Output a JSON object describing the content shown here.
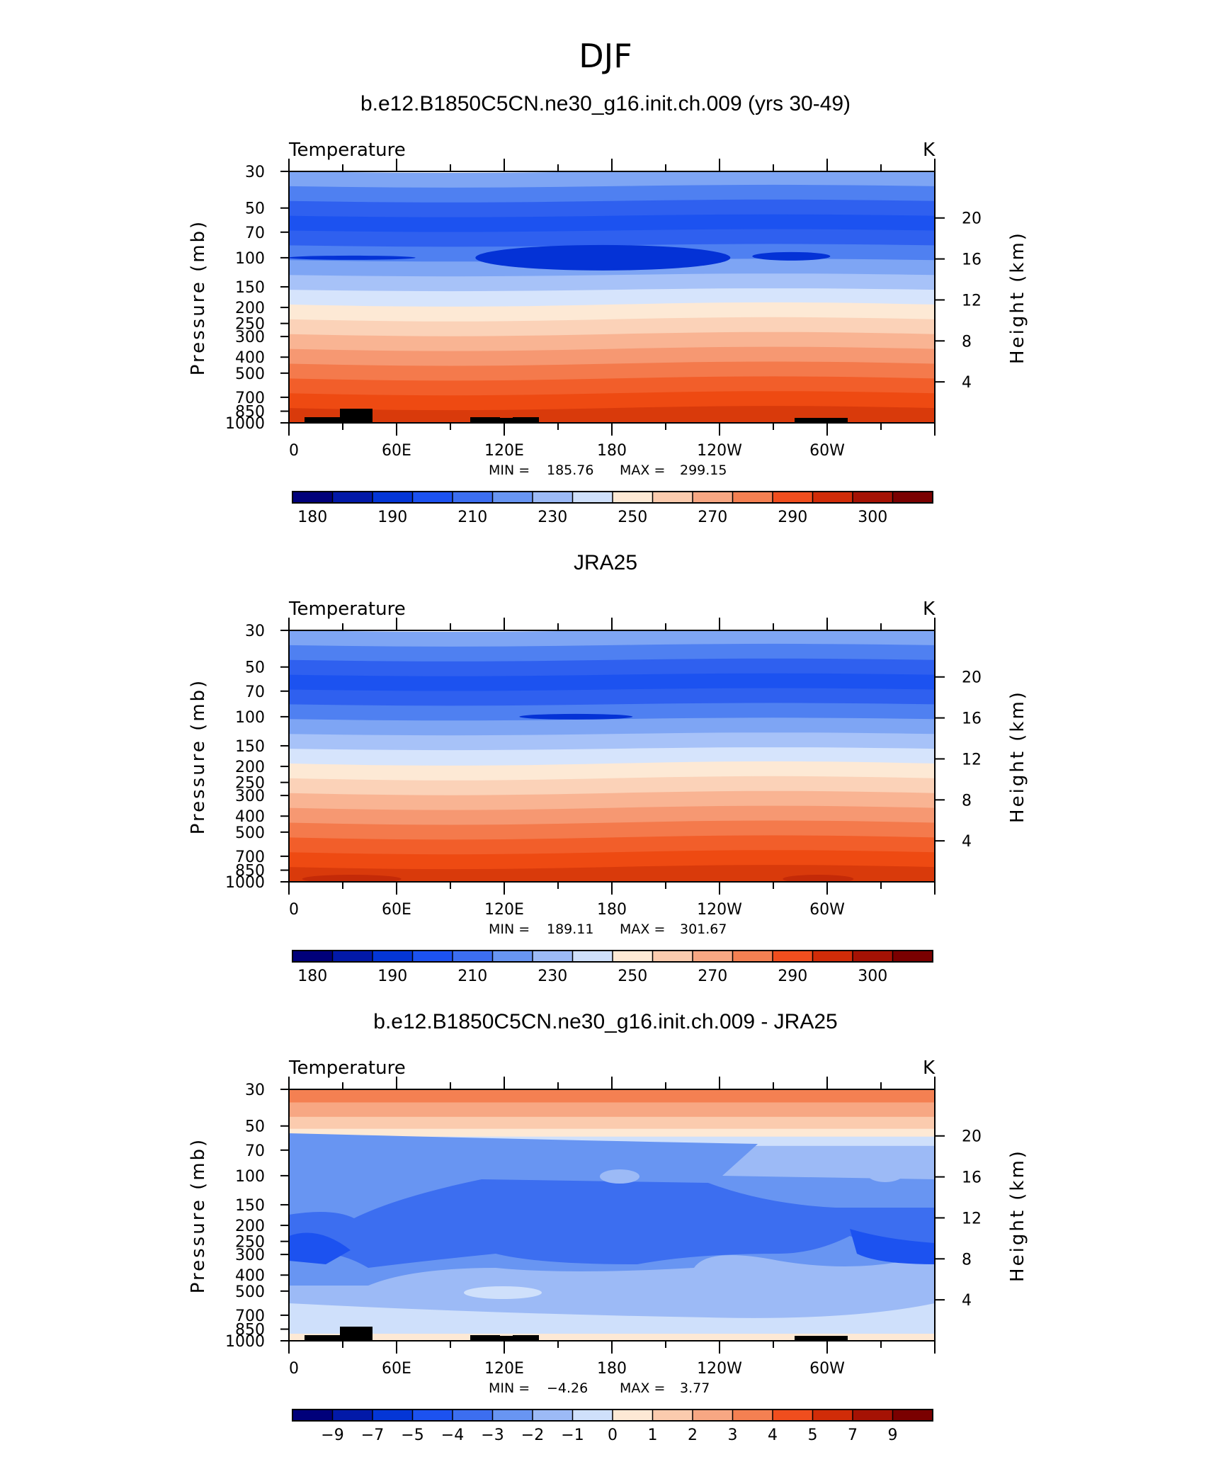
{
  "figure_title": "DJF",
  "chart_data": [
    {
      "type": "heatmap",
      "title": "b.e12.B1850C5CN.ne30_g16.init.ch.009 (yrs 30-49)",
      "subtitle_left": "Temperature",
      "subtitle_right": "K",
      "ylabel_left": "Pressure (mb)",
      "ylabel_right": "Height (km)",
      "x_ticks": [
        "0",
        "60E",
        "120E",
        "180",
        "120W",
        "60W"
      ],
      "y_ticks_pressure": [
        "30",
        "50",
        "70",
        "100",
        "150",
        "200",
        "250",
        "300",
        "400",
        "500",
        "700",
        "850",
        "1000"
      ],
      "y_ticks_height": [
        "20",
        "16",
        "12",
        "8",
        "4"
      ],
      "levels": [
        "180",
        "190",
        "210",
        "230",
        "250",
        "270",
        "290",
        "300"
      ],
      "stats": {
        "min_label": "MIN =",
        "min": "185.76",
        "max_label": "MAX =",
        "max": "299.15"
      },
      "has_topography": true
    },
    {
      "type": "heatmap",
      "title": "JRA25",
      "subtitle_left": "Temperature",
      "subtitle_right": "K",
      "ylabel_left": "Pressure (mb)",
      "ylabel_right": "Height (km)",
      "x_ticks": [
        "0",
        "60E",
        "120E",
        "180",
        "120W",
        "60W"
      ],
      "y_ticks_pressure": [
        "30",
        "50",
        "70",
        "100",
        "150",
        "200",
        "250",
        "300",
        "400",
        "500",
        "700",
        "850",
        "1000"
      ],
      "y_ticks_height": [
        "20",
        "16",
        "12",
        "8",
        "4"
      ],
      "levels": [
        "180",
        "190",
        "210",
        "230",
        "250",
        "270",
        "290",
        "300"
      ],
      "stats": {
        "min_label": "MIN =",
        "min": "189.11",
        "max_label": "MAX =",
        "max": "301.67"
      },
      "has_topography": false
    },
    {
      "type": "heatmap",
      "title": "b.e12.B1850C5CN.ne30_g16.init.ch.009 - JRA25",
      "subtitle_left": "Temperature",
      "subtitle_right": "K",
      "ylabel_left": "Pressure (mb)",
      "ylabel_right": "Height (km)",
      "x_ticks": [
        "0",
        "60E",
        "120E",
        "180",
        "120W",
        "60W"
      ],
      "y_ticks_pressure": [
        "30",
        "50",
        "70",
        "100",
        "150",
        "200",
        "250",
        "300",
        "400",
        "500",
        "700",
        "850",
        "1000"
      ],
      "y_ticks_height": [
        "20",
        "16",
        "12",
        "8",
        "4"
      ],
      "levels": [
        "−9",
        "−7",
        "−5",
        "−4",
        "−3",
        "−2",
        "−1",
        "0",
        "1",
        "2",
        "3",
        "4",
        "5",
        "7",
        "9"
      ],
      "stats": {
        "min_label": "MIN =",
        "min": "−4.26",
        "max_label": "MAX =",
        "max": "3.77"
      },
      "has_topography": true
    }
  ],
  "colorbar_colors": [
    "#00007a",
    "#0219a8",
    "#0436d6",
    "#1c52f0",
    "#3c6ef0",
    "#6895f2",
    "#9cbaf6",
    "#cfe0fb",
    "#fde9d5",
    "#fbcbae",
    "#f7a783",
    "#f48052",
    "#f04e1e",
    "#d12c08",
    "#a51204",
    "#7a0000"
  ],
  "temp_band_colors": [
    "#7ea5f4",
    "#4f80f1",
    "#2f60ef",
    "#1c52f0",
    "#2f60ef",
    "#4f80f1",
    "#7ea5f4",
    "#a7c2f8",
    "#d6e4fc",
    "#fde9d5",
    "#fbd2b8",
    "#f9b493",
    "#f69872",
    "#f47a4c",
    "#f25e2a",
    "#ee4a12",
    "#d93a0b"
  ],
  "cold_core_color": "#0432d6",
  "mid_cold_color": "#1a50ef",
  "surface_warm_color": "#c42a08",
  "topo_color": "#000000",
  "diff_colors": {
    "warm_top": "#f48052",
    "warm2": "#f7a783",
    "warm3": "#fbcbae",
    "warm4": "#fde9d5",
    "light_blue": "#cfe0fb",
    "pale_blue": "#9cbaf6",
    "mid_blue": "#6895f2",
    "blue": "#3c6ef0",
    "deep_blue": "#1c52f0"
  }
}
